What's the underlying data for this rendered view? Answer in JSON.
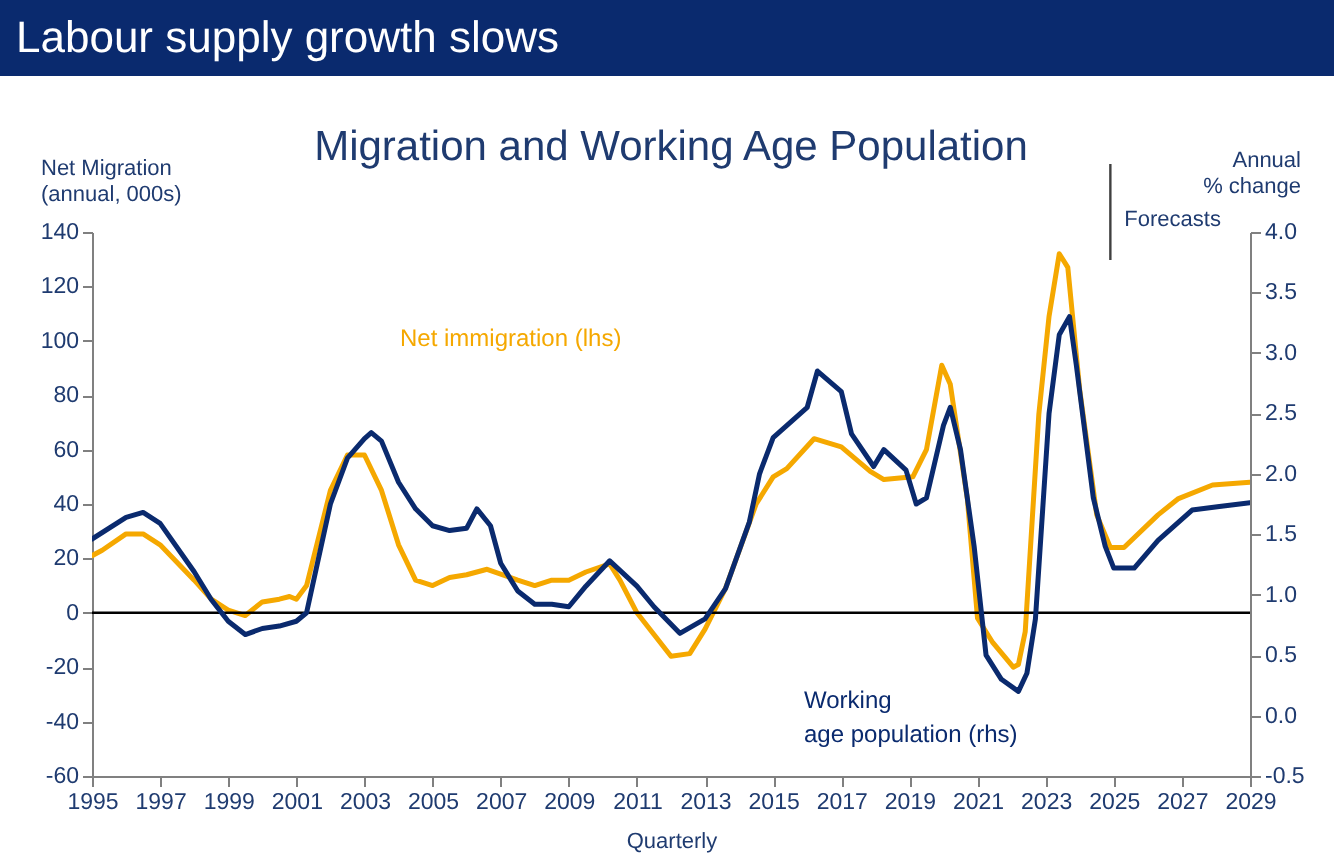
{
  "chart_data": {
    "type": "line",
    "title": "Labour supply growth slows",
    "subtitle": "Migration and Working Age Population",
    "xlabel": "Quarterly",
    "ylabel": "Net Migration (annual, 000s)",
    "y2label": "Annual % change",
    "xlim": [
      1995,
      2029
    ],
    "xticks": [
      1995,
      1997,
      1999,
      2001,
      2003,
      2005,
      2007,
      2009,
      2011,
      2013,
      2015,
      2017,
      2019,
      2021,
      2023,
      2025,
      2027,
      2029
    ],
    "ylim": [
      -60,
      140
    ],
    "yticks": [
      -60,
      -40,
      -20,
      0,
      20,
      40,
      60,
      80,
      100,
      120,
      140
    ],
    "y2lim": [
      -0.5,
      4.0
    ],
    "y2ticks": [
      {
        "value": -0.5,
        "label": "-0.5"
      },
      {
        "value": 0,
        "label": "0.0"
      },
      {
        "value": 0.5,
        "label": "0.5"
      },
      {
        "value": 1,
        "label": "1.0"
      },
      {
        "value": 1.5,
        "label": "1.5"
      },
      {
        "value": 2,
        "label": "2.0"
      },
      {
        "value": 2.5,
        "label": "2.5"
      },
      {
        "value": 3,
        "label": "3.0"
      },
      {
        "value": 3.5,
        "label": "3.5"
      },
      {
        "value": 4,
        "label": "4.0"
      }
    ],
    "grid": false,
    "legend": false,
    "line_style": "solid",
    "marker": "none",
    "ref_lines": [
      {
        "axis": "y",
        "value": 0,
        "color": "#000000"
      },
      {
        "axis": "x",
        "value": 2024.9,
        "label": "Forecasts",
        "color": "#404040"
      }
    ],
    "series": [
      {
        "name": "Net immigration (lhs)",
        "color": "#f5a800",
        "x": [
          1995,
          1995.3,
          1996,
          1996.5,
          1997,
          1998,
          1998.5,
          1999,
          1999.5,
          2000,
          2000.5,
          2000.8,
          2001,
          2001.3,
          2002,
          2002.5,
          2003,
          2003.5,
          2004,
          2004.5,
          2005,
          2005.5,
          2006,
          2006.6,
          2007.5,
          2008,
          2008.5,
          2009,
          2009.5,
          2010.2,
          2010.5,
          2011,
          2011.5,
          2012,
          2012.55,
          2013,
          2013.6,
          2014.5,
          2015,
          2015.4,
          2016.2,
          2017,
          2017.85,
          2018.25,
          2019.1,
          2019.5,
          2019.95,
          2020.2,
          2020.7,
          2021,
          2021.45,
          2022.05,
          2022.2,
          2022.4,
          2022.8,
          2023.1,
          2023.4,
          2023.65,
          2024,
          2024.5,
          2024.9,
          2025.3,
          2026.3,
          2026.9,
          2027.9,
          2029
        ],
        "values": [
          21,
          23,
          29,
          29,
          25,
          12,
          5,
          1,
          -1,
          4,
          5,
          6,
          5,
          10,
          45,
          58,
          58,
          45,
          25,
          12,
          10,
          13,
          14,
          16,
          12,
          10,
          12,
          12,
          15,
          18,
          12,
          0,
          -8,
          -16,
          -15,
          -6,
          9,
          40,
          50,
          53,
          64,
          61,
          52,
          49,
          50,
          60,
          91,
          84,
          42,
          -2,
          -11,
          -20,
          -19,
          -7,
          73,
          109,
          132,
          127,
          82,
          36,
          24,
          24,
          36,
          42,
          47,
          48
        ]
      },
      {
        "name": "Working age population (rhs)",
        "color": "#0a2a6e",
        "axis": "y2",
        "x": [
          1995,
          1996,
          1996.5,
          1997,
          1998,
          1998.5,
          1999,
          1999.5,
          2000,
          2000.5,
          2001,
          2001.3,
          2002,
          2002.5,
          2003,
          2003.2,
          2003.5,
          2004,
          2004.5,
          2005,
          2005.5,
          2006,
          2006.3,
          2006.7,
          2007,
          2007.5,
          2008,
          2008.5,
          2009,
          2009.5,
          2010.2,
          2011,
          2011.5,
          2012.26,
          2013,
          2013.6,
          2014.3,
          2014.6,
          2015,
          2016,
          2016.3,
          2017,
          2017.3,
          2017.95,
          2018.25,
          2018.9,
          2019.2,
          2019.5,
          2020,
          2020.2,
          2020.5,
          2020.9,
          2021.25,
          2021.7,
          2022.2,
          2022.45,
          2022.7,
          2023.1,
          2023.4,
          2023.7,
          2023.9,
          2024.4,
          2024.75,
          2025,
          2025.6,
          2026.3,
          2027.3,
          2028.1,
          2029
        ],
        "values": [
          1.46,
          1.64,
          1.68,
          1.59,
          1.19,
          0.96,
          0.78,
          0.67,
          0.72,
          0.74,
          0.78,
          0.85,
          1.75,
          2.13,
          2.29,
          2.34,
          2.27,
          1.93,
          1.71,
          1.57,
          1.53,
          1.55,
          1.71,
          1.57,
          1.26,
          1.03,
          0.92,
          0.92,
          0.9,
          1.07,
          1.28,
          1.07,
          0.9,
          0.68,
          0.8,
          1.05,
          1.6,
          2.0,
          2.3,
          2.55,
          2.85,
          2.68,
          2.33,
          2.06,
          2.2,
          2.03,
          1.75,
          1.8,
          2.4,
          2.55,
          2.2,
          1.4,
          0.5,
          0.3,
          0.2,
          0.35,
          0.8,
          2.5,
          3.15,
          3.3,
          2.9,
          1.8,
          1.4,
          1.22,
          1.22,
          1.45,
          1.7,
          1.73,
          1.76
        ]
      }
    ]
  }
}
